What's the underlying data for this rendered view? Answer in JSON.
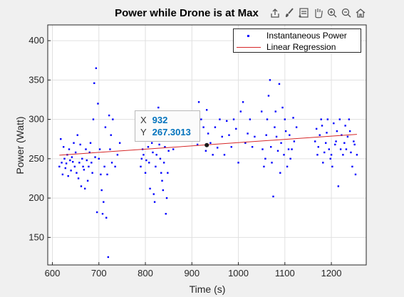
{
  "toolbar": {
    "icons": [
      "export-icon",
      "brush-icon",
      "datatip-icon",
      "pan-icon",
      "zoom-in-icon",
      "zoom-out-icon",
      "home-icon"
    ]
  },
  "legend": {
    "entries": [
      "Instantaneous Power",
      "Linear Regression"
    ]
  },
  "datatip": {
    "x_label": "X",
    "x_value": "932",
    "y_label": "Y",
    "y_value": "267.3013"
  },
  "colors": {
    "points": "#0000ff",
    "regression": "#d62728",
    "datatip": "#0072bd"
  },
  "chart_data": {
    "type": "scatter",
    "title": "Power while Drone is at Max",
    "xlabel": "Time (s)",
    "ylabel": "Power (Watt)",
    "xlim": [
      590,
      1275
    ],
    "ylim": [
      115,
      420
    ],
    "xticks": [
      600,
      700,
      800,
      900,
      1000,
      1100,
      1200
    ],
    "yticks": [
      150,
      200,
      250,
      300,
      350,
      400
    ],
    "grid": true,
    "legend_position": "top-right",
    "series": [
      {
        "name": "Instantaneous Power",
        "type": "scatter",
        "x": [
          615,
          618,
          620,
          622,
          624,
          626,
          628,
          630,
          632,
          634,
          636,
          638,
          640,
          642,
          644,
          646,
          648,
          650,
          652,
          654,
          656,
          658,
          660,
          662,
          664,
          666,
          668,
          670,
          672,
          674,
          676,
          678,
          680,
          682,
          684,
          686,
          688,
          690,
          692,
          694,
          696,
          698,
          700,
          702,
          704,
          706,
          708,
          710,
          712,
          714,
          716,
          718,
          720,
          722,
          724,
          726,
          728,
          730,
          735,
          740,
          745,
          790,
          792,
          794,
          796,
          798,
          800,
          802,
          804,
          806,
          808,
          810,
          812,
          814,
          816,
          818,
          820,
          822,
          824,
          826,
          828,
          830,
          832,
          834,
          836,
          838,
          840,
          842,
          844,
          846,
          848,
          850,
          860,
          870,
          885,
          890,
          910,
          912,
          915,
          920,
          925,
          930,
          932,
          935,
          940,
          945,
          950,
          955,
          960,
          965,
          970,
          975,
          980,
          985,
          990,
          995,
          1000,
          1005,
          1010,
          1015,
          1020,
          1025,
          1030,
          1035,
          1050,
          1052,
          1055,
          1058,
          1060,
          1062,
          1065,
          1068,
          1070,
          1072,
          1075,
          1078,
          1080,
          1082,
          1085,
          1088,
          1090,
          1092,
          1095,
          1098,
          1100,
          1102,
          1105,
          1108,
          1110,
          1112,
          1115,
          1118,
          1120,
          1125,
          1165,
          1168,
          1170,
          1172,
          1175,
          1178,
          1180,
          1182,
          1185,
          1188,
          1190,
          1192,
          1195,
          1198,
          1200,
          1202,
          1205,
          1208,
          1210,
          1212,
          1215,
          1218,
          1220,
          1222,
          1225,
          1228,
          1230,
          1232,
          1235,
          1238,
          1240,
          1242,
          1245,
          1248,
          1250,
          1252,
          1255
        ],
        "y": [
          240,
          275,
          245,
          230,
          265,
          250,
          238,
          244,
          255,
          228,
          262,
          248,
          235,
          252,
          246,
          270,
          240,
          258,
          232,
          280,
          225,
          245,
          268,
          215,
          250,
          240,
          236,
          212,
          262,
          248,
          222,
          240,
          258,
          270,
          245,
          232,
          300,
          346,
          252,
          365,
          182,
          320,
          250,
          262,
          230,
          210,
          180,
          195,
          240,
          290,
          175,
          230,
          125,
          305,
          262,
          280,
          245,
          300,
          240,
          255,
          270,
          240,
          250,
          262,
          255,
          285,
          232,
          248,
          300,
          265,
          245,
          212,
          280,
          270,
          258,
          205,
          195,
          240,
          255,
          300,
          315,
          268,
          250,
          232,
          222,
          210,
          245,
          265,
          180,
          200,
          232,
          260,
          262,
          280,
          300,
          276,
          280,
          268,
          322,
          300,
          290,
          260,
          312,
          282,
          270,
          255,
          290,
          264,
          300,
          278,
          255,
          298,
          280,
          265,
          300,
          288,
          245,
          310,
          322,
          270,
          282,
          300,
          265,
          278,
          310,
          262,
          240,
          250,
          280,
          300,
          330,
          350,
          265,
          245,
          202,
          290,
          310,
          278,
          260,
          345,
          232,
          270,
          315,
          255,
          300,
          285,
          240,
          262,
          280,
          250,
          262,
          302,
          272,
          290,
          272,
          288,
          255,
          265,
          280,
          300,
          292,
          245,
          258,
          270,
          283,
          300,
          262,
          250,
          255,
          240,
          295,
          268,
          272,
          285,
          215,
          300,
          262,
          280,
          255,
          270,
          292,
          262,
          278,
          300,
          285,
          258,
          240,
          272,
          268,
          230,
          255
        ]
      },
      {
        "name": "Linear Regression",
        "type": "line",
        "x": [
          615,
          1255
        ],
        "y": [
          254.5,
          281.0
        ]
      }
    ],
    "annotation": {
      "x": 932,
      "y": 267.3013
    }
  }
}
